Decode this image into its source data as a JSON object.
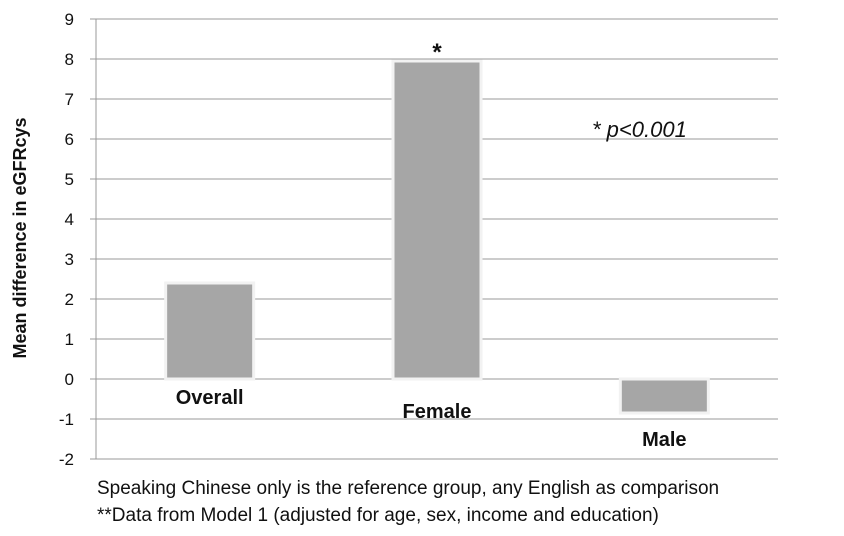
{
  "chart_data": {
    "type": "bar",
    "categories": [
      "Overall",
      "Female",
      "Male"
    ],
    "values": [
      2.4,
      7.95,
      -0.85
    ],
    "significance": [
      "",
      "*",
      ""
    ],
    "ylabel": "Mean difference in eGFRcys",
    "ylim": [
      -2,
      9
    ],
    "yticks": [
      -2,
      -1,
      0,
      1,
      2,
      3,
      4,
      5,
      6,
      7,
      8,
      9
    ],
    "grid": true,
    "annotation": "* p<0.001",
    "colors": {
      "bar": "#a6a6a6",
      "bar_edge": "#f2f2f2",
      "grid": "#999999"
    }
  },
  "footnotes": [
    "Speaking Chinese only is the reference group, any English as comparison",
    "**Data from Model 1 (adjusted for age, sex, income and education)"
  ]
}
